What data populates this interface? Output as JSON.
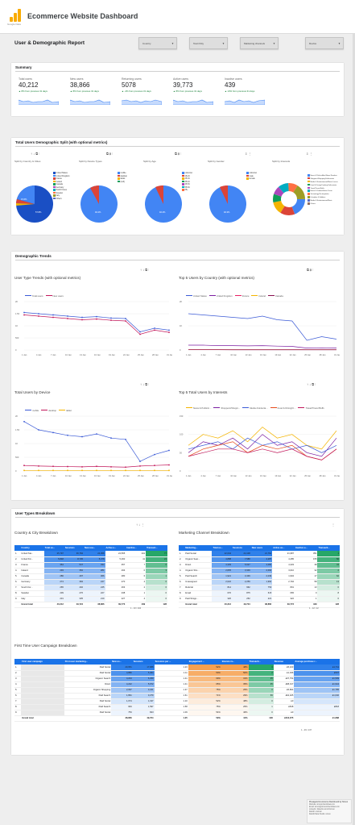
{
  "app_title": "Ecommerce Website Dashboard",
  "logo_sub": "Google Data",
  "report_title": "User & Demographic Report",
  "filters": [
    "Country",
    "Town/City",
    "Marketing channels",
    "Device"
  ],
  "sections": {
    "summary": "Summary",
    "split": "Total Users Demographic Split (with optional metrics)",
    "trends": "Demographic Trends",
    "breakdown": "User Types Breakdown"
  },
  "kpis": [
    {
      "label": "Total users",
      "value": "40,212",
      "change": "▲ 8% from previous 31 days"
    },
    {
      "label": "New users",
      "value": "38,866",
      "change": "▲ 8% from previous 31 days"
    },
    {
      "label": "Returning users",
      "value": "5078",
      "change": "▲ -4% from previous 31 days"
    },
    {
      "label": "Active users",
      "value": "39,773",
      "change": "▲ 8% from previous 31 days"
    },
    {
      "label": "Inactive users",
      "value": "439",
      "change": "▲ 13% from previous 31 days"
    }
  ],
  "splits": [
    {
      "title": "Split by Country & Cities",
      "legend": [
        "United States",
        "United Kingdom",
        "France",
        "Ireland",
        "Canada",
        "Germany",
        "South Korea",
        "Sweden",
        "Italy",
        "Others"
      ],
      "pcts": [
        "15.6%",
        "57.8%"
      ]
    },
    {
      "title": "Split by Device Types",
      "legend": [
        "mobile",
        "desktop",
        "tablet",
        "(null)"
      ],
      "pcts": [
        "92.2%"
      ]
    },
    {
      "title": "Split by Age",
      "legend": [
        "unknown",
        "18-24",
        "25-34",
        "35-44",
        "45-54",
        "55-64",
        "65+"
      ],
      "pcts": [
        "92.4%"
      ]
    },
    {
      "title": "Split by Gender",
      "legend": [
        "unknown",
        "male",
        "female"
      ],
      "pcts": [
        "92.3%"
      ]
    },
    {
      "title": "Split by Interests",
      "legend": [
        "News & Politics/Avid News Readers",
        "Shoppers/Shopping Enthusiasts",
        "Media & Entertainment/Movie Lovers",
        "Food & Dining/Cooking Enthusiasts",
        "Travel/Travel Buffs",
        "Home & Garden/Home Decor",
        "Technology/Technophiles",
        "Lifestyles & Hobbies",
        "Media & Entertainment/Music",
        "Others"
      ],
      "pcts": [
        "19%",
        "15%",
        "12.8%",
        "8.1%",
        "8.1%",
        "10.9%",
        "9.8%",
        "13.3%"
      ]
    }
  ],
  "charts": {
    "user_type_title": "User Type Trends (with optional metrics)",
    "user_type_legend": [
      "Total users",
      "New users"
    ],
    "country_title": "Top 5 Users by Country (with optional metrics)",
    "country_legend": [
      "United States",
      "United Kingdom",
      "France",
      "Ireland",
      "Canada"
    ],
    "device_title": "Total Users by Device",
    "device_legend": [
      "mobile",
      "desktop",
      "tablet"
    ],
    "interest_title": "Top 5 Total Users by Interests",
    "interest_legend": [
      "News & Politics/...",
      "Shoppers/Shoppi...",
      "Media & Enterta...",
      "Food & Dining/C...",
      "Travel/Travel Buffs"
    ],
    "xticks": [
      "1 Jan",
      "4 Jan",
      "7 Jan",
      "10 Jan",
      "13 Jan",
      "16 Jan",
      "19 Jan",
      "22 Jan",
      "25 Jan",
      "28 Jan",
      "31 Jan"
    ],
    "yticks_user": [
      "2K",
      "1.5K",
      "1K",
      "500",
      "0"
    ],
    "yticks_country": [
      "2K",
      "1K",
      "0"
    ],
    "yticks_device": [
      "2K",
      "1.5K",
      "1K",
      "500",
      "0"
    ],
    "yticks_interest": [
      "150",
      "100",
      "50",
      "0"
    ]
  },
  "country_table": {
    "title": "Country & City Breakdown",
    "headers": [
      "",
      "Country",
      "Total us...",
      "Sessions",
      "New use...",
      "Active u...",
      "Inactive...",
      "Transact..."
    ],
    "rows": [
      [
        "1.",
        "United Sta...",
        "25,797",
        "36,784",
        "24,058",
        "24,565",
        "241",
        "77"
      ],
      [
        "2.",
        "United Kin...",
        "5,848",
        "8,735",
        "5,378",
        "5,260",
        "41",
        "21"
      ],
      [
        "3.",
        "France",
        "364",
        "547",
        "334",
        "357",
        "7",
        "0"
      ],
      [
        "4.",
        "Ireland",
        "293",
        "352",
        "281",
        "293",
        "0",
        "3"
      ],
      [
        "5.",
        "Canada",
        "286",
        "497",
        "366",
        "280",
        "6",
        "1"
      ],
      [
        "6.",
        "Germany",
        "274",
        "384",
        "247",
        "270",
        "4",
        "0"
      ],
      [
        "7.",
        "South Kor...",
        "265",
        "402",
        "245",
        "263",
        "2",
        "0"
      ],
      [
        "8.",
        "Sweden",
        "239",
        "276",
        "227",
        "238",
        "1",
        "0"
      ],
      [
        "9.",
        "Italy",
        "231",
        "335",
        "219",
        "227",
        "4",
        "0"
      ]
    ],
    "total": [
      "",
      "Grand total",
      "40,212",
      "49,724",
      "38,866",
      "39,773",
      "439",
      "128"
    ],
    "pager": "1 - 10 / 104"
  },
  "channel_table": {
    "title": "Marketing Channel Breakdown",
    "headers": [
      "",
      "Marketing...",
      "Total us...",
      "Sessions",
      "New users",
      "Active us...",
      "Inactive u...",
      "Transacti..."
    ],
    "rows": [
      [
        "1.",
        "Paid Social",
        "22,004",
        "24,108",
        "21,762",
        "21,987",
        "351",
        "1"
      ],
      [
        "2.",
        "Organic Sear...",
        "4,888",
        "7,588",
        "4,287",
        "4,285",
        "155",
        "50"
      ],
      [
        "3.",
        "Direct",
        "4,339",
        "5,627",
        "4,082",
        "4,333",
        "38",
        "34"
      ],
      [
        "4.",
        "Organic Sho...",
        "2,835",
        "3,349",
        "2,094",
        "3,010",
        "32",
        "2"
      ],
      [
        "5.",
        "Paid Search",
        "1,921",
        "3,439",
        "2,049",
        "1,904",
        "17",
        "62"
      ],
      [
        "6.",
        "Unassigned",
        "2,022",
        "2,259",
        "1,962",
        "2,794",
        "58",
        "13"
      ],
      [
        "7.",
        "Referral",
        "814",
        "962",
        "753",
        "801",
        "13",
        "0"
      ],
      [
        "8.",
        "Email",
        "670",
        "875",
        "615",
        "665",
        "0",
        "8"
      ],
      [
        "9.",
        "Paid Shopp...",
        "320",
        "252",
        "221",
        "322",
        "1",
        "0"
      ]
    ],
    "total": [
      "",
      "Grand total",
      "40,212",
      "49,724",
      "38,866",
      "39,773",
      "439",
      "128"
    ],
    "pager": "1 - 12 / 12"
  },
  "campaign_table": {
    "title": "First Time User Campaign Breakdown",
    "headers": [
      "",
      "First user campaign",
      "First user marketing...",
      "New us...",
      "Sessions",
      "Sessions per ...",
      "Engagement ...",
      "Bounce ra...",
      "Transacti...",
      "Revenue",
      "Average purchase r..."
    ],
    "rows": [
      [
        "1.",
        "",
        "Paid Social",
        "20,651",
        "17,688",
        "1.23",
        "52%",
        "48%",
        "3",
        "£5,103",
        "£1,711"
      ],
      [
        "2.",
        "",
        "Paid Social",
        "4,880",
        "5,404",
        "1.11",
        "50%",
        "50%",
        "2",
        "£1,036",
        "£507"
      ],
      [
        "3.",
        "",
        "Organic Search",
        "4,224",
        "6,269",
        "1.41",
        "69%",
        "31%",
        "25",
        "£37,754",
        "£1,509"
      ],
      [
        "4.",
        "",
        "Direct",
        "4,222",
        "5,672",
        "1.41",
        "65%",
        "35%",
        "35",
        "£68,017",
        "£1,944"
      ],
      [
        "5.",
        "",
        "Organic Shopping",
        "2,097",
        "3,221",
        "1.37",
        "75%",
        "25%",
        "0",
        "£5,864",
        "£1,795"
      ],
      [
        "6.",
        "",
        "Paid Search",
        "1,891",
        "3,279",
        "1.61",
        "71%",
        "29%",
        "69",
        "£64,025",
        "£1,040"
      ],
      [
        "7.",
        "",
        "Paid Social",
        "1,074",
        "1,197",
        "1.10",
        "52%",
        "48%",
        "0",
        "£0",
        ""
      ],
      [
        "8.",
        "",
        "Paid Search",
        "963",
        "1,597",
        "1.58",
        "75%",
        "25%",
        "1",
        "£818",
        "£818"
      ],
      [
        "9.",
        "",
        "Paid Social",
        "753",
        "823",
        "1.09",
        "54%",
        "46%",
        "0",
        "£0",
        ""
      ]
    ],
    "total": [
      "",
      "Grand total",
      "",
      "38,866",
      "49,724",
      "1.25",
      "59%",
      "41%",
      "128",
      "£216,075",
      "£1,688"
    ],
    "pager": "1 - 26 / 137"
  },
  "footer": [
    "Pineapple Ecommerce Dashboard by Simon",
    "Website: simonrobertshaw.com",
    "Email: simon@simonrobertshaw.com",
    "Linkedin: linkedin.com/in/simon",
    "Reddit: u/simon",
    "Reddit Data Studio: simon"
  ],
  "chart_data": [
    {
      "type": "line",
      "title": "User Type Trends (with optional metrics)",
      "x": [
        "1 Jan",
        "4 Jan",
        "7 Jan",
        "10 Jan",
        "13 Jan",
        "16 Jan",
        "19 Jan",
        "22 Jan",
        "25 Jan",
        "28 Jan",
        "31 Jan"
      ],
      "series": [
        {
          "name": "Total users",
          "values": [
            1550,
            1500,
            1450,
            1400,
            1350,
            1380,
            1320,
            1300,
            750,
            900,
            820
          ]
        },
        {
          "name": "New users",
          "values": [
            1450,
            1400,
            1350,
            1300,
            1250,
            1280,
            1230,
            1200,
            650,
            820,
            730
          ]
        }
      ]
    },
    {
      "type": "line",
      "title": "Top 5 Users by Country (with optional metrics)",
      "x": [
        "1 Jan",
        "4 Jan",
        "7 Jan",
        "10 Jan",
        "13 Jan",
        "16 Jan",
        "19 Jan",
        "22 Jan",
        "25 Jan",
        "28 Jan",
        "31 Jan"
      ],
      "series": [
        {
          "name": "United States",
          "values": [
            1500,
            1450,
            1400,
            1350,
            1300,
            1400,
            1250,
            1200,
            400,
            550,
            450
          ]
        },
        {
          "name": "United Kingdom",
          "values": [
            200,
            200,
            180,
            180,
            170,
            180,
            160,
            150,
            80,
            90,
            80
          ]
        },
        {
          "name": "France",
          "values": [
            12,
            12,
            12,
            10,
            10,
            10,
            10,
            10,
            10,
            10,
            10
          ]
        },
        {
          "name": "Ireland",
          "values": [
            10,
            10,
            10,
            10,
            10,
            10,
            10,
            10,
            10,
            10,
            10
          ]
        },
        {
          "name": "Canada",
          "values": [
            10,
            10,
            10,
            9,
            9,
            9,
            9,
            9,
            8,
            8,
            8
          ]
        }
      ]
    },
    {
      "type": "line",
      "title": "Total Users by Device",
      "x": [
        "1 Jan",
        "4 Jan",
        "7 Jan",
        "10 Jan",
        "13 Jan",
        "16 Jan",
        "19 Jan",
        "22 Jan",
        "25 Jan",
        "28 Jan",
        "31 Jan"
      ],
      "series": [
        {
          "name": "mobile",
          "values": [
            1800,
            1500,
            1400,
            1300,
            1250,
            1350,
            1200,
            1150,
            350,
            600,
            750
          ]
        },
        {
          "name": "desktop",
          "values": [
            200,
            180,
            170,
            160,
            150,
            170,
            150,
            140,
            180,
            200,
            220
          ]
        },
        {
          "name": "tablet",
          "values": [
            20,
            20,
            20,
            20,
            20,
            20,
            20,
            20,
            20,
            20,
            20
          ]
        }
      ]
    },
    {
      "type": "line",
      "title": "Top 5 Total Users by Interests",
      "x": [
        "1 Jan",
        "4 Jan",
        "7 Jan",
        "10 Jan",
        "13 Jan",
        "16 Jan",
        "19 Jan",
        "22 Jan",
        "25 Jan",
        "28 Jan",
        "31 Jan"
      ],
      "series": [
        {
          "name": "News & Politics/...",
          "values": [
            70,
            100,
            90,
            110,
            80,
            120,
            90,
            100,
            70,
            60,
            110
          ]
        },
        {
          "name": "Shoppers/Shoppi...",
          "values": [
            50,
            80,
            70,
            90,
            60,
            100,
            70,
            80,
            50,
            40,
            90
          ]
        },
        {
          "name": "Media & Enterta...",
          "values": [
            60,
            70,
            80,
            60,
            90,
            70,
            80,
            60,
            70,
            50,
            70
          ]
        },
        {
          "name": "Food & Dining/C...",
          "values": [
            40,
            60,
            70,
            80,
            50,
            70,
            60,
            70,
            40,
            30,
            60
          ]
        },
        {
          "name": "Travel/Travel Buffs",
          "values": [
            40,
            50,
            60,
            60,
            50,
            60,
            50,
            60,
            40,
            30,
            60
          ]
        }
      ]
    }
  ]
}
